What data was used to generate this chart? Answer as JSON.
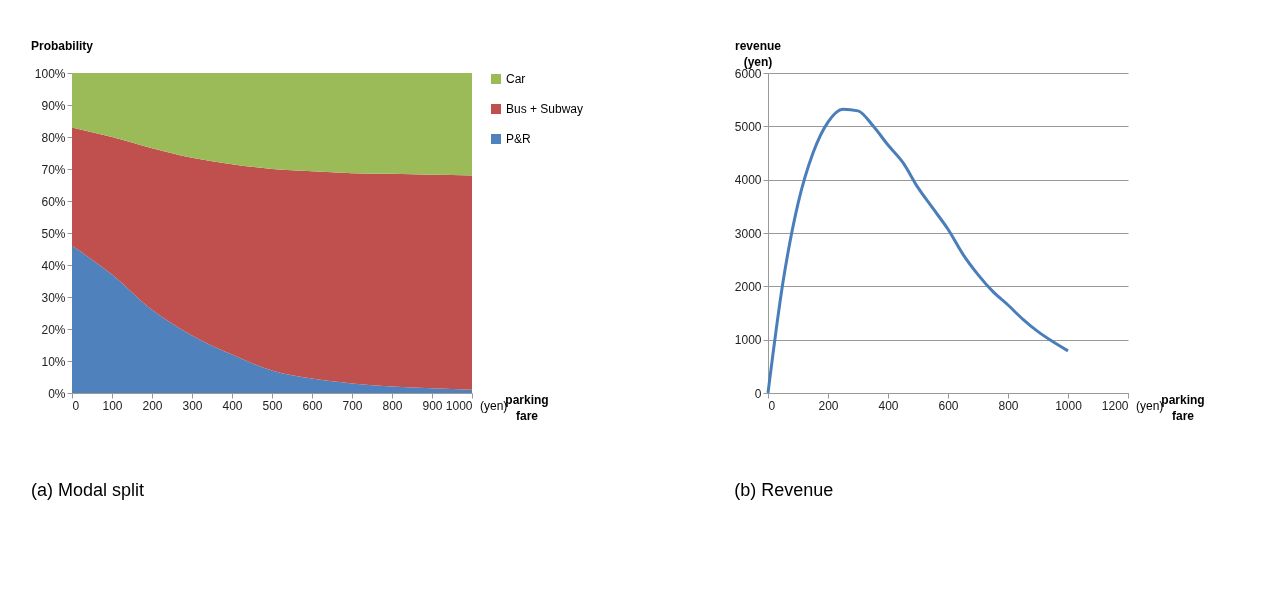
{
  "chart_data": [
    {
      "type": "area",
      "stacked": true,
      "title": "(a) Modal split",
      "ylabel": "Probability",
      "xlabel": "parking fare",
      "annotations": [
        "(yen)"
      ],
      "x": [
        0,
        100,
        200,
        300,
        400,
        500,
        600,
        700,
        800,
        900,
        1000
      ],
      "series": [
        {
          "name": "P&R",
          "color": "#4f81bd",
          "values": [
            46,
            37,
            26,
            18,
            12,
            7,
            4.5,
            3,
            2,
            1.5,
            1
          ]
        },
        {
          "name": "Bus + Subway",
          "color": "#c0504d",
          "values": [
            37,
            43,
            50.5,
            55.5,
            59.5,
            63,
            64.8,
            65.7,
            66.5,
            66.7,
            67
          ]
        },
        {
          "name": "Car",
          "color": "#9bbb59",
          "values": [
            17,
            20,
            23.5,
            26.5,
            28.5,
            30,
            30.7,
            31.3,
            31.5,
            31.8,
            32
          ]
        }
      ],
      "xlim": [
        0,
        1000
      ],
      "xticks": [
        0,
        100,
        200,
        300,
        400,
        500,
        600,
        700,
        800,
        900,
        1000
      ],
      "ylim": [
        0,
        100
      ],
      "yticks": [
        {
          "value": 0,
          "label": "0%"
        },
        {
          "value": 10,
          "label": "10%"
        },
        {
          "value": 20,
          "label": "20%"
        },
        {
          "value": 30,
          "label": "30%"
        },
        {
          "value": 40,
          "label": "40%"
        },
        {
          "value": 50,
          "label": "50%"
        },
        {
          "value": 60,
          "label": "60%"
        },
        {
          "value": 70,
          "label": "70%"
        },
        {
          "value": 80,
          "label": "80%"
        },
        {
          "value": 90,
          "label": "90%"
        },
        {
          "value": 100,
          "label": "100%"
        }
      ],
      "grid": false,
      "legend": "right"
    },
    {
      "type": "line",
      "title": "(b) Revenue",
      "ylabel": "revenue (yen)",
      "xlabel": "parking fare",
      "annotations": [
        "(yen)"
      ],
      "x": [
        0,
        50,
        100,
        150,
        200,
        250,
        300,
        350,
        400,
        450,
        500,
        550,
        600,
        650,
        700,
        750,
        800,
        850,
        900,
        950,
        1000
      ],
      "series": [
        {
          "color": "#4a7ebb",
          "values": [
            0,
            2080,
            3550,
            4500,
            5080,
            5320,
            5290,
            5010,
            4650,
            4320,
            3850,
            3460,
            3070,
            2600,
            2220,
            1900,
            1650,
            1380,
            1150,
            960,
            790
          ]
        }
      ],
      "xlim": [
        0,
        1200
      ],
      "xticks": [
        0,
        200,
        400,
        600,
        800,
        1000,
        1200
      ],
      "ylim": [
        0,
        6000
      ],
      "yticks": [
        0,
        1000,
        2000,
        3000,
        4000,
        5000,
        6000
      ],
      "grid": "y",
      "legend": false,
      "marker": "none",
      "line_style": "solid"
    }
  ]
}
